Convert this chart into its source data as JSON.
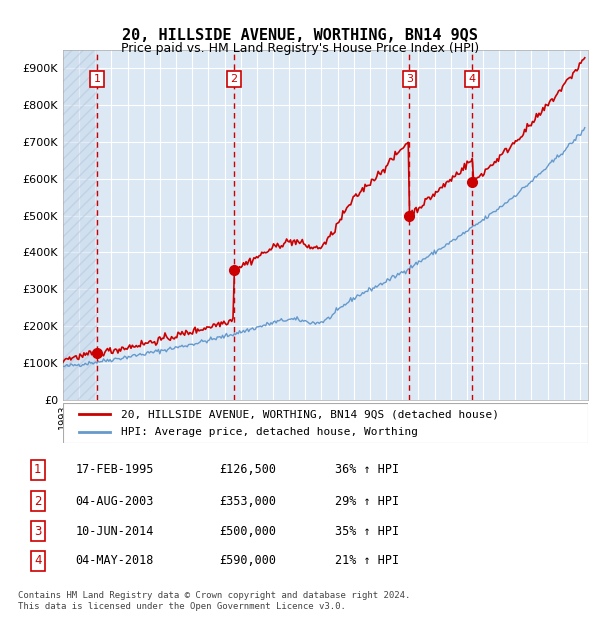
{
  "title": "20, HILLSIDE AVENUE, WORTHING, BN14 9QS",
  "subtitle": "Price paid vs. HM Land Registry's House Price Index (HPI)",
  "ylabel": "",
  "background_color": "#ffffff",
  "plot_bg_color": "#dce9f5",
  "hatch_color": "#b8cfe8",
  "grid_color": "#ffffff",
  "red_line_color": "#cc0000",
  "blue_line_color": "#6699cc",
  "sale_marker_color": "#cc0000",
  "vline_color": "#cc0000",
  "label_box_color": "#cc0000",
  "ylim": [
    0,
    950000
  ],
  "yticks": [
    0,
    100000,
    200000,
    300000,
    400000,
    500000,
    600000,
    700000,
    800000,
    900000
  ],
  "ytick_labels": [
    "£0",
    "£100K",
    "£200K",
    "£300K",
    "£400K",
    "£500K",
    "£600K",
    "£700K",
    "£800K",
    "£900K"
  ],
  "xlim_start": 1993.0,
  "xlim_end": 2025.5,
  "sales": [
    {
      "label": "1",
      "year": 1995.12,
      "price": 126500,
      "hpi_pct": "36%"
    },
    {
      "label": "2",
      "year": 2003.58,
      "price": 353000,
      "hpi_pct": "29%"
    },
    {
      "label": "3",
      "year": 2014.44,
      "price": 500000,
      "hpi_pct": "35%"
    },
    {
      "label": "4",
      "year": 2018.34,
      "price": 590000,
      "hpi_pct": "21%"
    }
  ],
  "legend_line1": "20, HILLSIDE AVENUE, WORTHING, BN14 9QS (detached house)",
  "legend_line2": "HPI: Average price, detached house, Worthing",
  "table_rows": [
    {
      "num": "1",
      "date": "17-FEB-1995",
      "price": "£126,500",
      "pct": "36% ↑ HPI"
    },
    {
      "num": "2",
      "date": "04-AUG-2003",
      "price": "£353,000",
      "pct": "29% ↑ HPI"
    },
    {
      "num": "3",
      "date": "10-JUN-2014",
      "price": "£500,000",
      "pct": "35% ↑ HPI"
    },
    {
      "num": "4",
      "date": "04-MAY-2018",
      "price": "£590,000",
      "pct": "21% ↑ HPI"
    }
  ],
  "footer": "Contains HM Land Registry data © Crown copyright and database right 2024.\nThis data is licensed under the Open Government Licence v3.0."
}
